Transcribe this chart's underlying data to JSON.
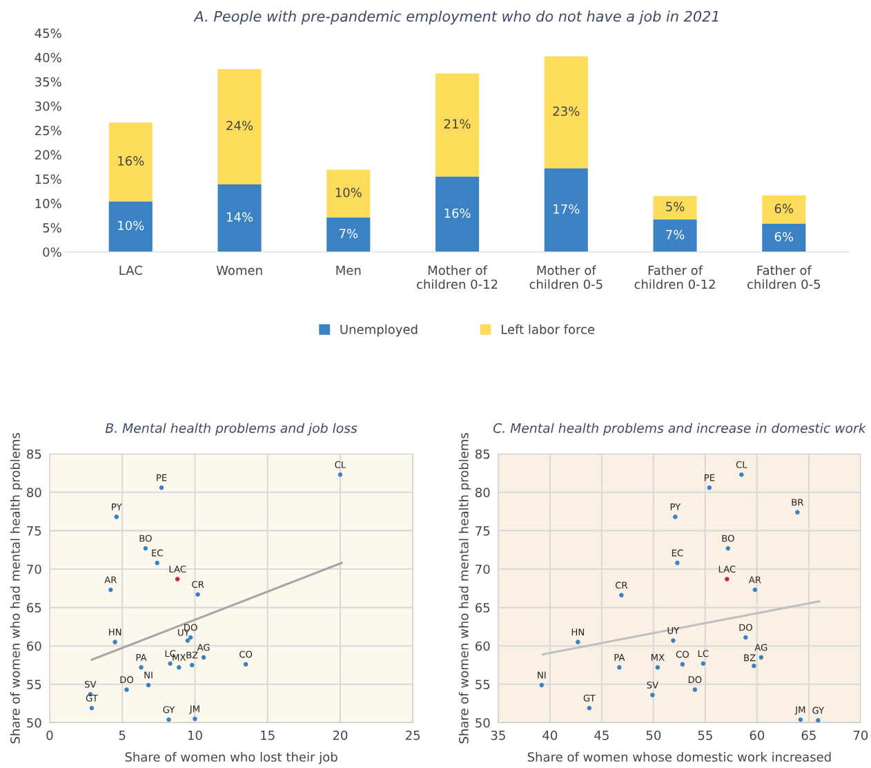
{
  "chart_data": [
    {
      "type": "bar",
      "title": "A. People with pre-pandemic employment who do not have a job in 2021",
      "categories": [
        "LAC",
        "Women",
        "Men",
        "Mother of\nchildren 0-12",
        "Mother of\nchildren 0-5",
        "Father of\nchildren 0-12",
        "Father of\nchildren 0-5"
      ],
      "stacked": true,
      "series": [
        {
          "name": "Unemployed",
          "color": "#3b82c4",
          "values": [
            10.4,
            13.9,
            7.1,
            15.5,
            17.2,
            6.7,
            5.8
          ],
          "value_labels": [
            "10%",
            "14%",
            "7%",
            "16%",
            "17%",
            "7%",
            "6%"
          ]
        },
        {
          "name": "Left labor force",
          "color": "#fcdc5a",
          "values": [
            16.2,
            23.7,
            9.8,
            21.2,
            23.0,
            4.8,
            5.8
          ],
          "value_labels": [
            "16%",
            "24%",
            "10%",
            "21%",
            "23%",
            "5%",
            "6%"
          ]
        }
      ],
      "ylim": [
        0,
        45
      ],
      "yticks": [
        {
          "value": 0,
          "label": "0%"
        },
        {
          "value": 5,
          "label": "5%"
        },
        {
          "value": 10,
          "label": "10%"
        },
        {
          "value": 15,
          "label": "15%"
        },
        {
          "value": 20,
          "label": "20%"
        },
        {
          "value": 25,
          "label": "25%"
        },
        {
          "value": 30,
          "label": "30%"
        },
        {
          "value": 35,
          "label": "35%"
        },
        {
          "value": 40,
          "label": "40%"
        },
        {
          "value": 45,
          "label": "45%"
        }
      ],
      "grid": false,
      "legend": "bottom"
    },
    {
      "type": "scatter",
      "title": "B. Mental health problems and job loss",
      "xlabel": "Share of women who lost their job",
      "ylabel": "Share of women who had mental health problems",
      "series": [
        {
          "type": "scatter",
          "marker": "circle",
          "x": [
            20.0,
            7.7,
            4.6,
            6.6,
            7.4,
            8.8,
            4.2,
            10.2,
            4.5,
            9.5,
            9.7,
            10.6,
            13.5,
            8.3,
            8.9,
            9.8,
            6.3,
            6.8,
            5.3,
            2.8,
            2.9,
            8.2,
            10.0
          ],
          "values": [
            82.3,
            80.6,
            76.8,
            72.7,
            70.8,
            68.7,
            67.3,
            66.7,
            60.5,
            60.7,
            61.1,
            58.5,
            57.6,
            57.7,
            57.2,
            57.5,
            57.2,
            54.9,
            54.3,
            53.7,
            51.9,
            50.4,
            50.5
          ],
          "colors": [
            "#3b82c4",
            "#3b82c4",
            "#3b82c4",
            "#3b82c4",
            "#3b82c4",
            "#d7193f",
            "#3b82c4",
            "#3b82c4",
            "#3b82c4",
            "#3b82c4",
            "#3b82c4",
            "#3b82c4",
            "#3b82c4",
            "#3b82c4",
            "#3b82c4",
            "#3b82c4",
            "#3b82c4",
            "#3b82c4",
            "#3b82c4",
            "#3b82c4",
            "#3b82c4",
            "#3b82c4",
            "#3b82c4"
          ]
        },
        {
          "type": "line",
          "x": [
            2.9,
            20.1
          ],
          "values": [
            58.2,
            70.8
          ],
          "color": "#a6a6a6",
          "marker": "none"
        }
      ],
      "annotations": [
        {
          "text": "CL",
          "x": 20.0,
          "y": 82.3
        },
        {
          "text": "PE",
          "x": 7.7,
          "y": 80.6
        },
        {
          "text": "PY",
          "x": 4.6,
          "y": 76.8
        },
        {
          "text": "BO",
          "x": 6.6,
          "y": 72.7
        },
        {
          "text": "EC",
          "x": 7.4,
          "y": 70.8
        },
        {
          "text": "LAC",
          "x": 8.8,
          "y": 68.7
        },
        {
          "text": "AR",
          "x": 4.2,
          "y": 67.3
        },
        {
          "text": "CR",
          "x": 10.2,
          "y": 66.7
        },
        {
          "text": "HN",
          "x": 4.5,
          "y": 60.5
        },
        {
          "text": "UY",
          "x": 9.5,
          "y": 60.7
        },
        {
          "text": "DO",
          "x": 9.7,
          "y": 61.1
        },
        {
          "text": "AG",
          "x": 10.6,
          "y": 58.5
        },
        {
          "text": "CO",
          "x": 13.5,
          "y": 57.6
        },
        {
          "text": "LC",
          "x": 8.3,
          "y": 57.7
        },
        {
          "text": "MX",
          "x": 8.9,
          "y": 57.2
        },
        {
          "text": "BZ",
          "x": 9.8,
          "y": 57.5
        },
        {
          "text": "PA",
          "x": 6.3,
          "y": 57.2
        },
        {
          "text": "NI",
          "x": 6.8,
          "y": 54.9
        },
        {
          "text": "DO",
          "x": 5.3,
          "y": 54.3
        },
        {
          "text": "SV",
          "x": 2.8,
          "y": 53.7
        },
        {
          "text": "GT",
          "x": 2.9,
          "y": 51.9
        },
        {
          "text": "GY",
          "x": 8.2,
          "y": 50.4
        },
        {
          "text": "JM",
          "x": 10.0,
          "y": 50.5
        }
      ],
      "xlim": [
        0,
        25
      ],
      "xticks": [
        0,
        5,
        10,
        15,
        20,
        25
      ],
      "ylim": [
        50,
        85
      ],
      "yticks": [
        50,
        55,
        60,
        65,
        70,
        75,
        80,
        85
      ],
      "grid": true
    },
    {
      "type": "scatter",
      "title": "C. Mental health problems and increase in domestic work",
      "xlabel": "Share of women whose domestic work increased",
      "ylabel": "Share of women who had mental health problems",
      "series": [
        {
          "type": "scatter",
          "marker": "circle",
          "x": [
            58.5,
            55.4,
            63.9,
            52.1,
            57.2,
            52.3,
            57.1,
            59.8,
            46.9,
            42.7,
            51.9,
            58.9,
            60.4,
            59.7,
            54.8,
            52.8,
            50.4,
            46.7,
            39.2,
            49.9,
            54.0,
            43.8,
            64.2,
            65.9
          ],
          "values": [
            82.3,
            80.6,
            77.4,
            76.8,
            72.7,
            70.8,
            68.7,
            67.3,
            66.6,
            60.5,
            60.7,
            61.1,
            58.5,
            57.4,
            57.7,
            57.6,
            57.2,
            57.2,
            54.9,
            53.6,
            54.3,
            51.9,
            50.4,
            50.3
          ],
          "colors": [
            "#3b82c4",
            "#3b82c4",
            "#3b82c4",
            "#3b82c4",
            "#3b82c4",
            "#3b82c4",
            "#d7193f",
            "#3b82c4",
            "#3b82c4",
            "#3b82c4",
            "#3b82c4",
            "#3b82c4",
            "#3b82c4",
            "#3b82c4",
            "#3b82c4",
            "#3b82c4",
            "#3b82c4",
            "#3b82c4",
            "#3b82c4",
            "#3b82c4",
            "#3b82c4",
            "#3b82c4",
            "#3b82c4",
            "#3b82c4"
          ]
        },
        {
          "type": "line",
          "x": [
            39.3,
            66.0
          ],
          "values": [
            58.9,
            65.8
          ],
          "color": "#bfbfbf",
          "marker": "none"
        }
      ],
      "annotations": [
        {
          "text": "CL",
          "x": 58.5,
          "y": 82.3
        },
        {
          "text": "PE",
          "x": 55.4,
          "y": 80.6
        },
        {
          "text": "BR",
          "x": 63.9,
          "y": 77.4
        },
        {
          "text": "PY",
          "x": 52.1,
          "y": 76.8
        },
        {
          "text": "BO",
          "x": 57.2,
          "y": 72.7
        },
        {
          "text": "EC",
          "x": 52.3,
          "y": 70.8
        },
        {
          "text": "LAC",
          "x": 57.1,
          "y": 68.7
        },
        {
          "text": "AR",
          "x": 59.8,
          "y": 67.3
        },
        {
          "text": "CR",
          "x": 46.9,
          "y": 66.6
        },
        {
          "text": "HN",
          "x": 42.7,
          "y": 60.5
        },
        {
          "text": "UY",
          "x": 51.9,
          "y": 60.7
        },
        {
          "text": "DO",
          "x": 58.9,
          "y": 61.1
        },
        {
          "text": "AG",
          "x": 60.4,
          "y": 58.5
        },
        {
          "text": "BZ",
          "x": 59.7,
          "y": 57.4
        },
        {
          "text": "LC",
          "x": 54.8,
          "y": 57.7
        },
        {
          "text": "CO",
          "x": 52.8,
          "y": 57.6
        },
        {
          "text": "MX",
          "x": 50.4,
          "y": 57.2
        },
        {
          "text": "PA",
          "x": 46.7,
          "y": 57.2
        },
        {
          "text": "NI",
          "x": 39.2,
          "y": 54.9
        },
        {
          "text": "SV",
          "x": 49.9,
          "y": 53.6
        },
        {
          "text": "DO",
          "x": 54.0,
          "y": 54.3
        },
        {
          "text": "GT",
          "x": 43.8,
          "y": 51.9
        },
        {
          "text": "JM",
          "x": 64.2,
          "y": 50.4
        },
        {
          "text": "GY",
          "x": 65.9,
          "y": 50.3
        }
      ],
      "xlim": [
        35,
        70
      ],
      "xticks": [
        35,
        40,
        45,
        50,
        55,
        60,
        65,
        70
      ],
      "ylim": [
        50,
        85
      ],
      "yticks": [
        50,
        55,
        60,
        65,
        70,
        75,
        80,
        85
      ],
      "grid": true
    }
  ]
}
